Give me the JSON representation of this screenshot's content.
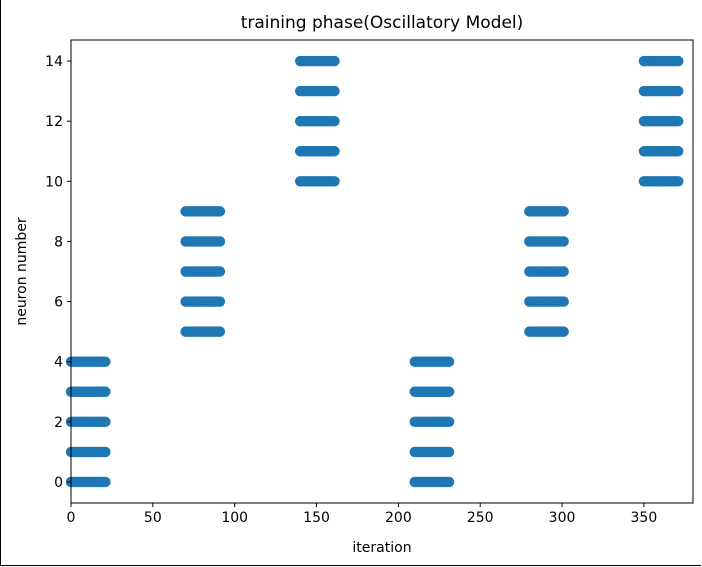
{
  "chart_data": {
    "type": "scatter",
    "title": "training phase(Oscillatory Model)",
    "xlabel": "iteration",
    "ylabel": "neuron number",
    "xlim": [
      0,
      380
    ],
    "ylim": [
      -0.7,
      14.7
    ],
    "xticks": [
      0,
      50,
      100,
      150,
      200,
      250,
      300,
      350
    ],
    "yticks": [
      0,
      2,
      4,
      6,
      8,
      10,
      12,
      14
    ],
    "grid": false,
    "marker_color": "#1f77b4",
    "spike_groups": [
      {
        "x_range": [
          0,
          21
        ],
        "neurons": [
          0,
          1,
          2,
          3,
          4
        ]
      },
      {
        "x_range": [
          70,
          91
        ],
        "neurons": [
          5,
          6,
          7,
          8,
          9
        ]
      },
      {
        "x_range": [
          140,
          161
        ],
        "neurons": [
          10,
          11,
          12,
          13,
          14
        ]
      },
      {
        "x_range": [
          210,
          231
        ],
        "neurons": [
          0,
          1,
          2,
          3,
          4
        ]
      },
      {
        "x_range": [
          280,
          301
        ],
        "neurons": [
          5,
          6,
          7,
          8,
          9
        ]
      },
      {
        "x_range": [
          350,
          371
        ],
        "neurons": [
          10,
          11,
          12,
          13,
          14
        ]
      }
    ]
  }
}
